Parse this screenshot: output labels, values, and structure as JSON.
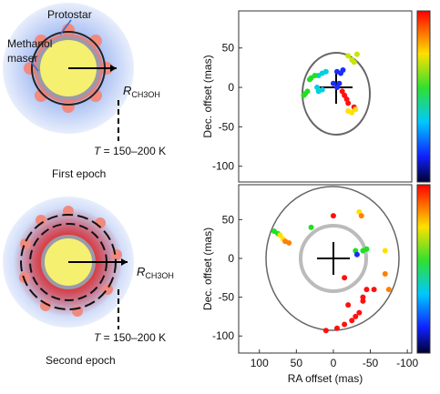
{
  "diagrams": [
    {
      "protostar_label": "Protostar",
      "maser_label": [
        "Methanol",
        "maser"
      ],
      "radius_label": "R",
      "radius_subscript": "CH3OH",
      "temperature_symbol": "T",
      "temperature_text": " = 150–200 K",
      "caption": "First epoch"
    },
    {
      "radius_label": "R",
      "radius_subscript": "CH3OH",
      "temperature_symbol": "T",
      "temperature_text": " = 150–200 K",
      "caption": "Second epoch"
    }
  ],
  "chart_data": [
    {
      "type": "scatter",
      "y_label": "Dec. offset (mas)",
      "xlim": [
        128,
        -106
      ],
      "ylim": [
        -120,
        97
      ],
      "yticks": [
        50,
        0,
        -50,
        -100
      ],
      "series": [
        {
          "color": "#c8e600",
          "x": [
            -20,
            -25,
            -28,
            -32
          ],
          "y": [
            40,
            35,
            32,
            42
          ]
        },
        {
          "color": "#1a2cff",
          "x": [
            -5,
            -10,
            -13,
            0,
            -5,
            -8
          ],
          "y": [
            20,
            18,
            22,
            5,
            0,
            5
          ]
        },
        {
          "color": "#00d0e0",
          "x": [
            10,
            15,
            20,
            20,
            22,
            15
          ],
          "y": [
            20,
            18,
            15,
            -5,
            0,
            -3
          ]
        },
        {
          "color": "#20e020",
          "x": [
            25,
            30,
            32,
            35,
            38,
            40
          ],
          "y": [
            15,
            12,
            10,
            -5,
            -8,
            -10
          ]
        },
        {
          "color": "#ff1010",
          "x": [
            -12,
            -15,
            -18,
            -20,
            -28
          ],
          "y": [
            -5,
            -10,
            -15,
            -20,
            -25
          ]
        },
        {
          "color": "#ffe000",
          "x": [
            -20,
            -25,
            -30
          ],
          "y": [
            -30,
            -32,
            -28
          ]
        }
      ]
    },
    {
      "type": "scatter",
      "x_label": "RA offset (mas)",
      "y_label": "Dec. offset (mas)",
      "xlim": [
        128,
        -106
      ],
      "ylim": [
        -122,
        95
      ],
      "xticks": [
        100,
        50,
        0,
        -50,
        -100
      ],
      "yticks": [
        50,
        0,
        -50,
        -100
      ],
      "series": [
        {
          "color": "#20e020",
          "x": [
            80,
            75,
            30,
            -30,
            -40,
            -45
          ],
          "y": [
            35,
            32,
            40,
            10,
            10,
            12
          ]
        },
        {
          "color": "#ffe000",
          "x": [
            72,
            68,
            -35,
            -70
          ],
          "y": [
            30,
            25,
            60,
            10
          ]
        },
        {
          "color": "#ff8000",
          "x": [
            65,
            60,
            -38,
            -70,
            -75
          ],
          "y": [
            22,
            20,
            55,
            -20,
            -40
          ]
        },
        {
          "color": "#1a2cff",
          "x": [
            -32
          ],
          "y": [
            5
          ]
        },
        {
          "color": "#ff1010",
          "x": [
            0,
            -55,
            -40,
            -15,
            -20,
            -40,
            -45,
            10,
            -5,
            -15,
            -25,
            -30,
            -35
          ],
          "y": [
            55,
            -40,
            -50,
            -25,
            -60,
            -55,
            -40,
            -93,
            -90,
            -85,
            -80,
            -75,
            -70
          ]
        }
      ]
    }
  ]
}
